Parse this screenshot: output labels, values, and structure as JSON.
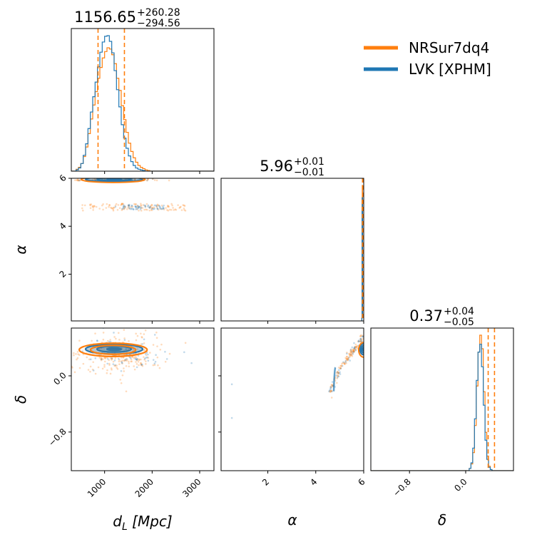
{
  "colors": {
    "nrsur": "#ff7f0e",
    "lvk": "#1f77b4",
    "frame": "#000000"
  },
  "legend": {
    "placement": "top-right",
    "entries": [
      "NRSur7dq4",
      "LVK [XPHM]"
    ]
  },
  "titles": {
    "dL": {
      "median": "1156.65",
      "plus": "+260.28",
      "minus": "−294.56"
    },
    "alpha": {
      "median": "5.96",
      "plus": "+0.01",
      "minus": "−0.01"
    },
    "delta": {
      "median": "0.37",
      "plus": "+0.04",
      "minus": "−0.05"
    }
  },
  "axis_labels": {
    "dL": "d_L [Mpc]",
    "alpha": "α",
    "delta": "δ"
  },
  "chart_data": {
    "type": "corner",
    "parameters": [
      "dL",
      "alpha",
      "delta"
    ],
    "ranges": {
      "dL": [
        300,
        3300
      ],
      "alpha": [
        0.05,
        6.0
      ],
      "delta": [
        -1.35,
        0.68
      ]
    },
    "ticks": {
      "dL": {
        "values": [
          1000,
          2000,
          3000
        ],
        "labels": [
          "1000",
          "2000",
          "3000"
        ]
      },
      "alpha": {
        "values": [
          2,
          4,
          6
        ],
        "labels": [
          "2",
          "4",
          "6"
        ]
      },
      "delta": {
        "values": [
          -0.8,
          0.0
        ],
        "labels": [
          "−0.8",
          "0.0"
        ]
      }
    },
    "quantile_lines": {
      "dL": [
        862.09,
        1416.93
      ],
      "alpha": [
        5.95,
        5.97
      ],
      "delta": [
        0.32,
        0.41
      ]
    },
    "marginals": {
      "dL": {
        "bin_start": 300,
        "bin_width": 50,
        "NRSur7dq4": [
          0,
          0,
          0.3,
          0.6,
          1.2,
          2.3,
          3.8,
          5.9,
          8.2,
          10.4,
          12.5,
          14.6,
          16.3,
          17.8,
          18.8,
          19.4,
          19.2,
          18.3,
          16.9,
          14.6,
          12.7,
          10.3,
          8.1,
          6.1,
          4.4,
          3.1,
          2.1,
          1.4,
          0.9,
          0.6,
          0.4,
          0.2,
          0.1,
          0,
          0,
          0,
          0,
          0,
          0,
          0,
          0,
          0,
          0,
          0,
          0,
          0,
          0,
          0,
          0,
          0,
          0,
          0,
          0,
          0,
          0,
          0,
          0,
          0,
          0,
          0
        ],
        "LVK [XPHM]": [
          0,
          0,
          0.2,
          0.5,
          1.2,
          2.5,
          4.3,
          6.7,
          9.3,
          11.7,
          14.0,
          16.4,
          18.7,
          20.3,
          21.2,
          21.3,
          20.4,
          18.6,
          15.8,
          12.8,
          10.1,
          7.3,
          5.2,
          3.6,
          2.4,
          1.5,
          0.9,
          0.5,
          0.3,
          0.2,
          0.1,
          0,
          0,
          0,
          0,
          0,
          0,
          0,
          0,
          0,
          0,
          0,
          0,
          0,
          0,
          0,
          0,
          0,
          0,
          0,
          0,
          0,
          0,
          0,
          0,
          0,
          0,
          0,
          0,
          0
        ]
      },
      "alpha": {
        "bin_start": 5.92,
        "bin_width": 0.01,
        "NRSur7dq4": [
          0.5,
          20,
          22,
          1.0
        ],
        "LVK [XPHM]": [
          0.4,
          18,
          20,
          0.8
        ]
      },
      "delta": {
        "bin_start": -1.35,
        "bin_width": 0.025,
        "NRSur7dq4": [
          0,
          0,
          0,
          0,
          0,
          0,
          0,
          0,
          0,
          0,
          0,
          0,
          0,
          0,
          0,
          0,
          0,
          0,
          0,
          0,
          0,
          0,
          0,
          0,
          0,
          0,
          0,
          0,
          0,
          0,
          0,
          0,
          0,
          0,
          0,
          0,
          0,
          0,
          0,
          0,
          0,
          0,
          0,
          0,
          0,
          0,
          0,
          0,
          0,
          0,
          0,
          0,
          0,
          0,
          0,
          0,
          0.2,
          0.6,
          1.6,
          4.0,
          7.5,
          10.5,
          12.0,
          10.8,
          7.0,
          3.4,
          1.3,
          0.4,
          0.1,
          0,
          0,
          0,
          0,
          0,
          0,
          0,
          0,
          0,
          0,
          0,
          0
        ],
        "LVK [XPHM]": [
          0,
          0,
          0,
          0,
          0,
          0,
          0,
          0,
          0,
          0,
          0,
          0,
          0,
          0,
          0,
          0,
          0,
          0,
          0,
          0,
          0,
          0,
          0,
          0,
          0,
          0,
          0,
          0,
          0,
          0,
          0,
          0,
          0,
          0,
          0,
          0,
          0,
          0,
          0,
          0,
          0,
          0,
          0,
          0,
          0,
          0,
          0,
          0,
          0,
          0,
          0,
          0,
          0,
          0,
          0,
          0,
          0.2,
          0.7,
          2.0,
          4.6,
          8.0,
          10.5,
          11.2,
          9.2,
          5.8,
          2.7,
          1.0,
          0.3,
          0.1,
          0,
          0,
          0,
          0,
          0,
          0,
          0,
          0,
          0,
          0,
          0,
          0
        ]
      }
    },
    "joint": {
      "dL_alpha": {
        "clusters": [
          {
            "series": "LVK [XPHM]",
            "center": [
              1200,
              5.96
            ],
            "sigma": [
              300,
              0.05
            ],
            "levels": [
              0.5,
              1.2,
              2.0
            ]
          },
          {
            "series": "NRSur7dq4",
            "center": [
              1180,
              5.95
            ],
            "sigma": [
              320,
              0.06
            ],
            "levels": [
              2.1
            ]
          }
        ],
        "scatter_bands": [
          {
            "series": "NRSur7dq4",
            "dL": [
              500,
              2700
            ],
            "alpha": [
              4.65,
              4.95
            ],
            "n": 120
          },
          {
            "series": "LVK [XPHM]",
            "dL": [
              1200,
              2300
            ],
            "alpha": [
              4.7,
              4.9
            ],
            "n": 60
          }
        ]
      },
      "dL_delta": {
        "clusters": [
          {
            "series": "LVK [XPHM]",
            "center": [
              1200,
              0.38
            ],
            "sigma": [
              300,
              0.035
            ],
            "levels": [
              0.5,
              1.2,
              2.0
            ]
          },
          {
            "series": "NRSur7dq4",
            "center": [
              1180,
              0.37
            ],
            "sigma": [
              340,
              0.045
            ],
            "levels": [
              1.4,
              2.1
            ]
          }
        ],
        "scatter": [
          {
            "series": "NRSur7dq4",
            "center": [
              1300,
              0.3
            ],
            "sigma": [
              550,
              0.18
            ],
            "n": 260
          },
          {
            "series": "LVK [XPHM]",
            "center": [
              1400,
              0.32
            ],
            "sigma": [
              450,
              0.15
            ],
            "n": 90
          }
        ]
      },
      "alpha_delta": {
        "arc": {
          "alpha": [
            4.6,
            6.0
          ],
          "delta": [
            -0.25,
            0.55
          ]
        },
        "clusters": [
          {
            "series": "LVK [XPHM]",
            "center": [
              6.0,
              0.38
            ],
            "sigma": [
              0.08,
              0.04
            ],
            "levels": [
              0.6,
              1.3,
              2.0
            ]
          },
          {
            "series": "NRSur7dq4",
            "center": [
              6.0,
              0.37
            ],
            "sigma": [
              0.1,
              0.05
            ],
            "levels": [
              2.1
            ]
          }
        ],
        "outliers": [
          {
            "alpha": 0.5,
            "delta": -0.12
          },
          {
            "alpha": 0.5,
            "delta": -0.6
          }
        ]
      }
    }
  }
}
